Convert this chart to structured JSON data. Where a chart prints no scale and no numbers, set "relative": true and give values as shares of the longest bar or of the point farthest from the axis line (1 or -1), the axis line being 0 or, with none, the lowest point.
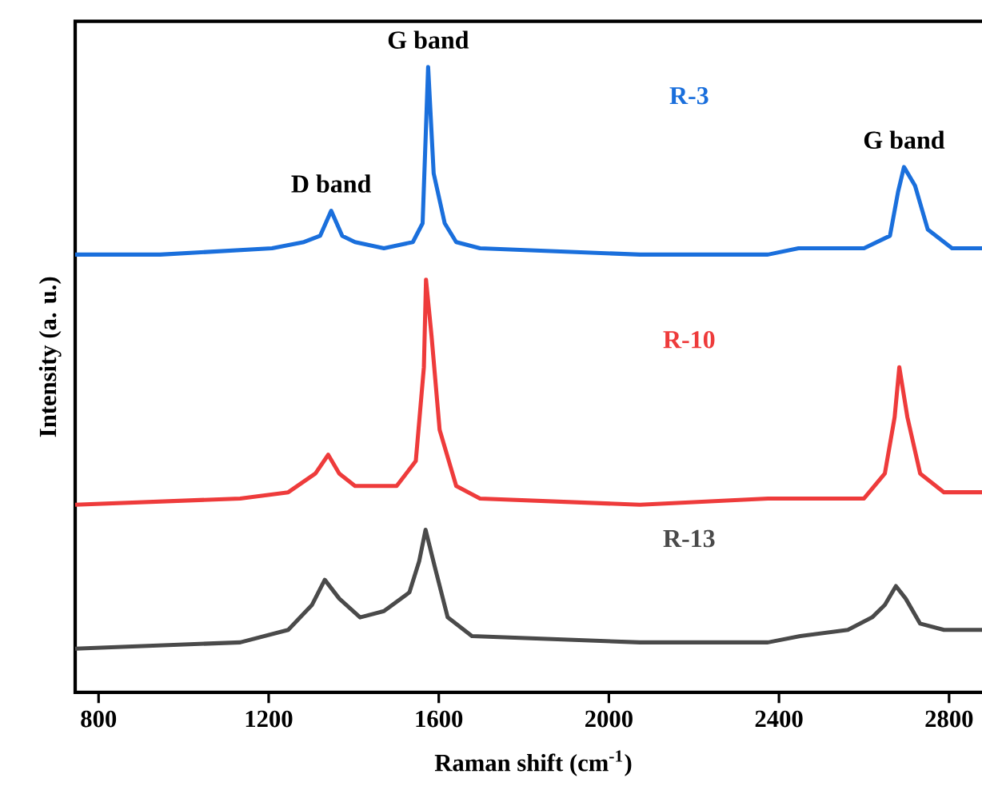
{
  "chart_data": {
    "type": "line",
    "relative": true,
    "xlabel": "Raman shift (cm$^{-1}$)",
    "ylabel": "Intensity (a. u.)",
    "xlim": [
      745,
      2900
    ],
    "xticks": [
      800,
      1200,
      1600,
      2000,
      2400,
      2800
    ],
    "line_style": "solid",
    "series": [
      {
        "name": "R-3",
        "color": "#1a6fdc",
        "x": [
          745,
          945,
          1208,
          1283,
          1321,
          1347,
          1373,
          1403,
          1471,
          1539,
          1562,
          1575,
          1588,
          1614,
          1641,
          1697,
          2073,
          2374,
          2446,
          2487,
          2600,
          2661,
          2680,
          2694,
          2720,
          2750,
          2807,
          2879
        ],
        "values": [
          0.7,
          0.7,
          0.71,
          0.72,
          0.73,
          0.77,
          0.73,
          0.72,
          0.71,
          0.72,
          0.75,
          1.0,
          0.83,
          0.75,
          0.72,
          0.71,
          0.7,
          0.7,
          0.71,
          0.71,
          0.71,
          0.73,
          0.8,
          0.84,
          0.81,
          0.74,
          0.71,
          0.71
        ]
      },
      {
        "name": "R-10",
        "color": "#ee3b3b",
        "x": [
          745,
          1133,
          1246,
          1310,
          1340,
          1366,
          1403,
          1501,
          1546,
          1565,
          1570,
          1583,
          1602,
          1641,
          1697,
          2073,
          2374,
          2438,
          2487,
          2600,
          2649,
          2672,
          2683,
          2702,
          2732,
          2788,
          2879
        ],
        "values": [
          0.3,
          0.31,
          0.32,
          0.35,
          0.38,
          0.35,
          0.33,
          0.33,
          0.37,
          0.52,
          0.66,
          0.57,
          0.42,
          0.33,
          0.31,
          0.3,
          0.31,
          0.31,
          0.31,
          0.31,
          0.35,
          0.44,
          0.52,
          0.44,
          0.35,
          0.32,
          0.32
        ]
      },
      {
        "name": "R-13",
        "color": "#4a4a4a",
        "x": [
          745,
          1133,
          1246,
          1302,
          1332,
          1366,
          1415,
          1471,
          1531,
          1554,
          1569,
          1591,
          1621,
          1678,
          2073,
          2374,
          2450,
          2562,
          2619,
          2649,
          2675,
          2698,
          2732,
          2788,
          2879
        ],
        "values": [
          0.07,
          0.08,
          0.1,
          0.14,
          0.18,
          0.15,
          0.12,
          0.13,
          0.16,
          0.21,
          0.26,
          0.2,
          0.12,
          0.09,
          0.08,
          0.08,
          0.09,
          0.1,
          0.12,
          0.14,
          0.17,
          0.15,
          0.11,
          0.1,
          0.1
        ]
      }
    ],
    "annotations": [
      {
        "text": "D band",
        "x": 1347,
        "y": 0.77
      },
      {
        "text": "G band",
        "x": 1575,
        "y": 1.0
      },
      {
        "text": "G band",
        "x": 2694,
        "y": 0.84
      }
    ]
  }
}
